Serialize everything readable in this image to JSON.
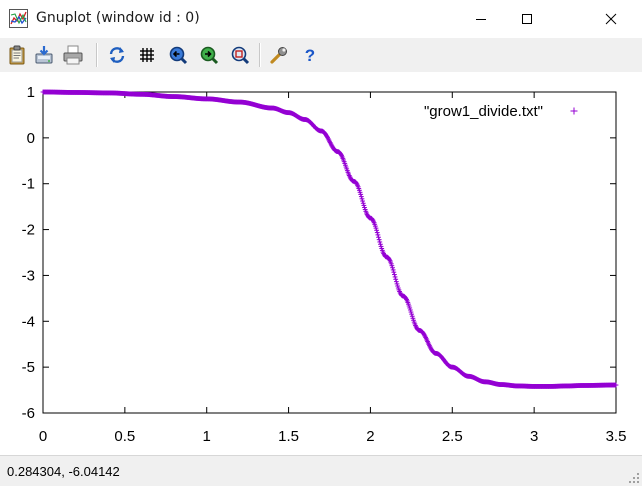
{
  "window": {
    "title": "Gnuplot (window id : 0)",
    "controls": [
      "minimize",
      "maximize",
      "close"
    ]
  },
  "toolbar": {
    "buttons": [
      {
        "name": "copy-clipboard-icon"
      },
      {
        "name": "save-icon"
      },
      {
        "name": "print-icon"
      },
      {
        "name": "replot-icon"
      },
      {
        "name": "grid-icon"
      },
      {
        "name": "zoom-previous-icon"
      },
      {
        "name": "zoom-next-icon"
      },
      {
        "name": "unzoom-icon"
      },
      {
        "name": "options-wrench-icon"
      },
      {
        "name": "help-icon"
      }
    ]
  },
  "colors": {
    "series": "#9400d3",
    "axis": "#000000"
  },
  "chart_data": {
    "type": "scatter",
    "xlim": [
      0,
      3.5
    ],
    "ylim": [
      -6,
      1
    ],
    "x_ticks": [
      "0",
      "0.5",
      "1",
      "1.5",
      "2",
      "2.5",
      "3",
      "3.5"
    ],
    "y_ticks": [
      "1",
      "0",
      "-1",
      "-2",
      "-3",
      "-4",
      "-5",
      "-6"
    ],
    "marker": "+",
    "legend_position": "top-right",
    "series": [
      {
        "name": "\"grow1_divide.txt\"",
        "x": [
          0,
          0.2,
          0.4,
          0.6,
          0.8,
          1.0,
          1.2,
          1.4,
          1.5,
          1.6,
          1.7,
          1.8,
          1.9,
          2.0,
          2.1,
          2.2,
          2.3,
          2.4,
          2.5,
          2.6,
          2.7,
          2.8,
          2.9,
          3.0,
          3.1,
          3.2,
          3.3,
          3.5
        ],
        "y": [
          1.0,
          0.99,
          0.98,
          0.95,
          0.9,
          0.85,
          0.78,
          0.65,
          0.55,
          0.4,
          0.15,
          -0.3,
          -0.95,
          -1.75,
          -2.6,
          -3.45,
          -4.2,
          -4.7,
          -5.0,
          -5.2,
          -5.32,
          -5.38,
          -5.41,
          -5.42,
          -5.42,
          -5.41,
          -5.4,
          -5.39
        ]
      }
    ]
  },
  "status": {
    "coordinates": "0.284304, -6.04142"
  }
}
